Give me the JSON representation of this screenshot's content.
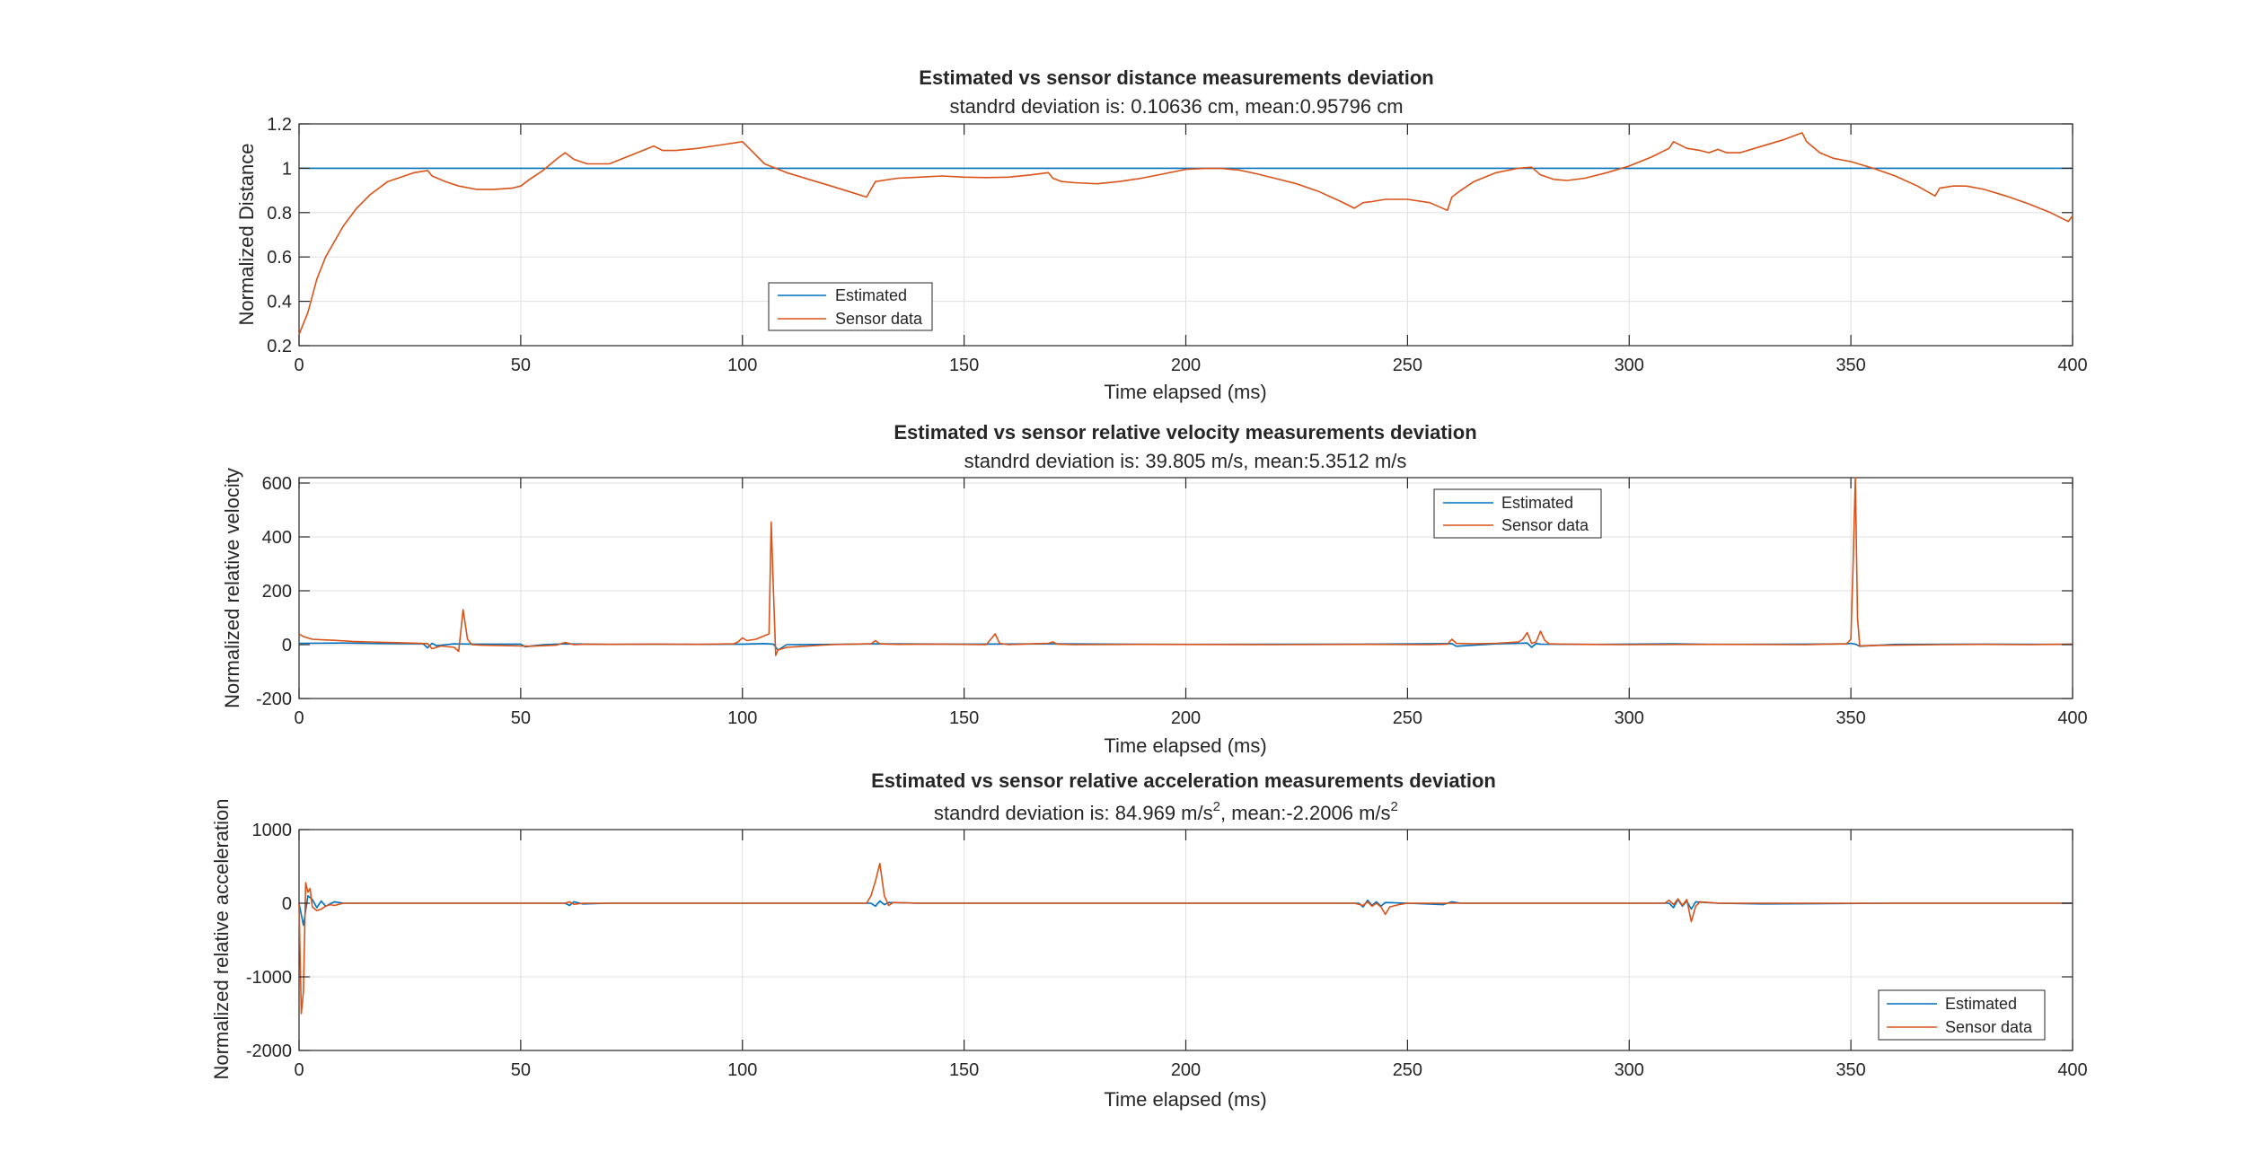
{
  "colors": {
    "estimated": "#0072BD",
    "sensor": "#D95319",
    "axis": "#262626",
    "grid": "#dfdfdf"
  },
  "chart_data": [
    {
      "type": "line",
      "title": "Estimated vs sensor distance measurements deviation",
      "subtitle": "standrd deviation is: 0.10636 cm, mean:0.95796 cm",
      "xlabel": "Time elapsed (ms)",
      "ylabel": "Normalized Distance",
      "xlim": [
        0,
        400
      ],
      "ylim": [
        0.2,
        1.2
      ],
      "xticks": [
        0,
        50,
        100,
        150,
        200,
        250,
        300,
        350,
        400
      ],
      "yticks": [
        0.2,
        0.4,
        0.6,
        0.8,
        1,
        1.2
      ],
      "ytick_labels": [
        "0.2",
        "0.4",
        "0.6",
        "0.8",
        "1",
        "1.2"
      ],
      "grid": true,
      "legend_position": "bottom-left",
      "series": [
        {
          "name": "Estimated",
          "x": [
            0,
            400
          ],
          "y": [
            1,
            1
          ]
        },
        {
          "name": "Sensor data",
          "x": [
            0,
            2,
            4,
            6,
            8,
            10,
            13,
            16,
            20,
            23,
            26,
            29,
            30,
            33,
            36,
            40,
            44,
            48,
            50,
            52,
            55,
            58,
            60,
            62,
            65,
            70,
            75,
            80,
            82,
            85,
            90,
            95,
            100,
            102,
            105,
            110,
            115,
            120,
            124,
            128,
            130,
            135,
            140,
            145,
            150,
            155,
            160,
            165,
            169,
            170,
            172,
            175,
            180,
            185,
            190,
            195,
            200,
            205,
            208,
            212,
            216,
            220,
            225,
            230,
            235,
            238,
            240,
            242,
            245,
            250,
            255,
            259,
            260,
            262,
            265,
            270,
            275,
            278,
            280,
            283,
            286,
            290,
            295,
            300,
            305,
            309,
            310,
            313,
            316,
            318,
            320,
            322,
            325,
            330,
            335,
            339,
            340,
            343,
            346,
            350,
            355,
            360,
            365,
            369,
            370,
            373,
            376,
            380,
            385,
            390,
            395,
            399,
            400
          ],
          "y": [
            0.25,
            0.35,
            0.5,
            0.6,
            0.67,
            0.74,
            0.82,
            0.88,
            0.94,
            0.96,
            0.98,
            0.99,
            0.965,
            0.94,
            0.92,
            0.905,
            0.905,
            0.91,
            0.92,
            0.95,
            0.99,
            1.04,
            1.07,
            1.04,
            1.02,
            1.02,
            1.06,
            1.1,
            1.08,
            1.08,
            1.09,
            1.105,
            1.12,
            1.08,
            1.02,
            0.98,
            0.95,
            0.92,
            0.895,
            0.87,
            0.94,
            0.955,
            0.96,
            0.965,
            0.96,
            0.958,
            0.96,
            0.97,
            0.98,
            0.955,
            0.94,
            0.935,
            0.93,
            0.94,
            0.955,
            0.975,
            0.995,
            1.0,
            0.999,
            0.992,
            0.975,
            0.955,
            0.93,
            0.895,
            0.85,
            0.82,
            0.845,
            0.85,
            0.86,
            0.86,
            0.845,
            0.81,
            0.87,
            0.9,
            0.94,
            0.98,
            1.0,
            1.005,
            0.97,
            0.95,
            0.945,
            0.955,
            0.98,
            1.01,
            1.05,
            1.09,
            1.12,
            1.09,
            1.08,
            1.07,
            1.085,
            1.07,
            1.07,
            1.1,
            1.13,
            1.16,
            1.12,
            1.07,
            1.045,
            1.03,
            1.0,
            0.965,
            0.92,
            0.875,
            0.91,
            0.92,
            0.92,
            0.905,
            0.875,
            0.84,
            0.8,
            0.76,
            0.785
          ]
        }
      ]
    },
    {
      "type": "line",
      "title": "Estimated vs sensor relative velocity measurements deviation",
      "subtitle": "standrd deviation is: 39.805 m/s, mean:5.3512 m/s",
      "xlabel": "Time elapsed (ms)",
      "ylabel": "Normalized relative velocity",
      "xlim": [
        0,
        400
      ],
      "ylim": [
        -200,
        620
      ],
      "xticks": [
        0,
        50,
        100,
        150,
        200,
        250,
        300,
        350,
        400
      ],
      "yticks": [
        -200,
        0,
        200,
        400,
        600
      ],
      "ytick_labels": [
        "-200",
        "0",
        "200",
        "400",
        "600"
      ],
      "grid": true,
      "legend_position": "top-right",
      "series": [
        {
          "name": "Estimated",
          "x": [
            0,
            10,
            20,
            28,
            29,
            30,
            31,
            35,
            40,
            50,
            51,
            55,
            60,
            70,
            80,
            90,
            100,
            105,
            107,
            108,
            110,
            120,
            130,
            150,
            170,
            200,
            240,
            260,
            261,
            270,
            277,
            278,
            279,
            280,
            290,
            300,
            310,
            320,
            340,
            349,
            350,
            351,
            352,
            360,
            380,
            400
          ],
          "y": [
            5,
            6,
            4,
            3,
            -12,
            5,
            -4,
            3,
            2,
            2,
            -8,
            0,
            3,
            1,
            2,
            1,
            2,
            4,
            2,
            -20,
            0,
            1,
            3,
            2,
            3,
            1,
            2,
            4,
            -6,
            3,
            6,
            -10,
            4,
            2,
            1,
            2,
            3,
            1,
            2,
            3,
            5,
            2,
            -6,
            1,
            2,
            1
          ]
        },
        {
          "name": "Sensor data",
          "x": [
            0,
            1,
            3,
            5,
            8,
            12,
            16,
            20,
            25,
            29,
            30,
            32,
            35,
            36,
            37,
            38,
            39,
            41,
            45,
            50,
            52,
            55,
            58,
            60,
            62,
            65,
            70,
            80,
            90,
            98,
            99,
            100,
            101,
            103,
            106,
            106.5,
            107,
            107.5,
            108,
            110,
            115,
            120,
            125,
            129,
            130,
            131,
            135,
            145,
            155,
            156,
            157,
            158,
            160,
            169,
            170,
            171,
            175,
            190,
            220,
            240,
            255,
            259,
            260,
            261,
            265,
            270,
            275,
            276,
            277,
            278,
            279,
            280,
            281,
            282,
            285,
            290,
            300,
            320,
            340,
            345,
            349,
            350,
            350.5,
            351,
            351.5,
            352,
            355,
            360,
            370,
            380,
            390,
            400
          ],
          "y": [
            40,
            30,
            20,
            18,
            16,
            12,
            10,
            8,
            6,
            4,
            -15,
            -5,
            -10,
            -25,
            130,
            20,
            0,
            -2,
            -3,
            -5,
            -6,
            -4,
            -2,
            8,
            0,
            2,
            1,
            2,
            1,
            3,
            10,
            25,
            15,
            20,
            40,
            455,
            200,
            -40,
            -20,
            -10,
            -5,
            0,
            2,
            3,
            15,
            3,
            1,
            2,
            0,
            20,
            40,
            5,
            0,
            5,
            10,
            2,
            0,
            1,
            0,
            1,
            0,
            2,
            20,
            5,
            3,
            5,
            10,
            20,
            45,
            5,
            10,
            50,
            15,
            3,
            2,
            1,
            0,
            1,
            0,
            2,
            3,
            20,
            300,
            620,
            100,
            -5,
            -3,
            -2,
            0,
            1,
            0,
            2
          ]
        }
      ]
    },
    {
      "type": "line",
      "title": "Estimated vs sensor relative acceleration measurements deviation",
      "subtitle_main": "standrd deviation is: 84.969 m/s",
      "subtitle_mean": ", mean:-2.2006 m/s",
      "superscript": "2",
      "xlabel": "Time elapsed (ms)",
      "ylabel": "Normalized relative acceleration",
      "xlim": [
        0,
        400
      ],
      "ylim": [
        -2000,
        1000
      ],
      "xticks": [
        0,
        50,
        100,
        150,
        200,
        250,
        300,
        350,
        400
      ],
      "yticks": [
        -2000,
        -1000,
        0,
        1000
      ],
      "ytick_labels": [
        "-2000",
        "-1000",
        "0",
        "1000"
      ],
      "grid": true,
      "legend_position": "bottom-right",
      "series": [
        {
          "name": "Estimated",
          "x": [
            0,
            1,
            2,
            3,
            4,
            5,
            6,
            8,
            10,
            20,
            60,
            61,
            62,
            64,
            70,
            80,
            100,
            129,
            130,
            131,
            132,
            133,
            140,
            170,
            200,
            239,
            240,
            241,
            242,
            243,
            244,
            245,
            250,
            258,
            260,
            262,
            300,
            309,
            310,
            311,
            312,
            313,
            314,
            315,
            320,
            330,
            360,
            400
          ],
          "y": [
            0,
            -300,
            100,
            50,
            -60,
            30,
            -40,
            20,
            0,
            0,
            0,
            -30,
            20,
            -10,
            0,
            0,
            0,
            0,
            -40,
            30,
            -20,
            10,
            0,
            0,
            0,
            0,
            -50,
            40,
            -30,
            20,
            -40,
            10,
            0,
            -20,
            20,
            0,
            0,
            0,
            -60,
            50,
            -40,
            30,
            -80,
            20,
            0,
            -10,
            0,
            0
          ]
        },
        {
          "name": "Sensor data",
          "x": [
            0,
            0.5,
            1,
            1.5,
            2,
            2.5,
            3,
            4,
            5,
            6,
            7,
            8,
            10,
            20,
            60,
            61,
            62,
            64,
            100,
            128,
            129,
            130,
            131,
            132,
            133,
            134,
            140,
            200,
            238,
            240,
            241,
            242,
            243,
            244,
            245,
            246,
            248,
            250,
            300,
            308,
            309,
            310,
            311,
            312,
            313,
            314,
            315,
            316,
            320,
            360,
            400
          ],
          "y": [
            0,
            -1500,
            -1200,
            280,
            150,
            200,
            -50,
            -100,
            -80,
            -40,
            -20,
            -30,
            0,
            0,
            0,
            20,
            -15,
            0,
            0,
            0,
            100,
            300,
            540,
            100,
            -30,
            10,
            0,
            0,
            0,
            -30,
            20,
            -40,
            0,
            -50,
            -150,
            -50,
            -20,
            0,
            0,
            0,
            40,
            -20,
            60,
            -30,
            50,
            -250,
            -40,
            20,
            0,
            0,
            0
          ]
        }
      ]
    }
  ]
}
